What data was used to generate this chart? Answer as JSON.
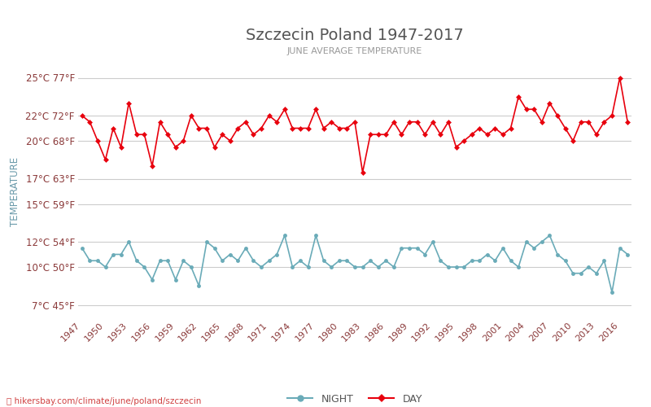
{
  "title": "Szczecin Poland 1947-2017",
  "subtitle": "JUNE AVERAGE TEMPERATURE",
  "ylabel": "TEMPERATURE",
  "footer": "hikersbay.com/climate/june/poland/szczecin",
  "years": [
    1947,
    1948,
    1949,
    1950,
    1951,
    1952,
    1953,
    1954,
    1955,
    1956,
    1957,
    1958,
    1959,
    1960,
    1961,
    1962,
    1963,
    1964,
    1965,
    1966,
    1967,
    1968,
    1969,
    1970,
    1971,
    1972,
    1973,
    1974,
    1975,
    1976,
    1977,
    1978,
    1979,
    1980,
    1981,
    1982,
    1983,
    1984,
    1985,
    1986,
    1987,
    1988,
    1989,
    1990,
    1991,
    1992,
    1993,
    1994,
    1995,
    1996,
    1997,
    1998,
    1999,
    2000,
    2001,
    2002,
    2003,
    2004,
    2005,
    2006,
    2007,
    2008,
    2009,
    2010,
    2011,
    2012,
    2013,
    2014,
    2015,
    2016,
    2017
  ],
  "day_temps": [
    22.0,
    21.5,
    20.0,
    18.5,
    21.0,
    19.5,
    23.0,
    20.5,
    20.5,
    18.0,
    21.5,
    20.5,
    19.5,
    20.0,
    22.0,
    21.0,
    21.0,
    19.5,
    20.5,
    20.0,
    21.0,
    21.5,
    20.5,
    21.0,
    22.0,
    21.5,
    22.5,
    21.0,
    21.0,
    21.0,
    22.5,
    21.0,
    21.5,
    21.0,
    21.0,
    21.5,
    17.5,
    20.5,
    20.5,
    20.5,
    21.5,
    20.5,
    21.5,
    21.5,
    20.5,
    21.5,
    20.5,
    21.5,
    19.5,
    20.0,
    20.5,
    21.0,
    20.5,
    21.0,
    20.5,
    21.0,
    23.5,
    22.5,
    22.5,
    21.5,
    23.0,
    22.0,
    21.0,
    20.0,
    21.5,
    21.5,
    20.5,
    21.5,
    22.0,
    25.0,
    21.5
  ],
  "night_temps": [
    11.5,
    10.5,
    10.5,
    10.0,
    11.0,
    11.0,
    12.0,
    10.5,
    10.0,
    9.0,
    10.5,
    10.5,
    9.0,
    10.5,
    10.0,
    8.5,
    12.0,
    11.5,
    10.5,
    11.0,
    10.5,
    11.5,
    10.5,
    10.0,
    10.5,
    11.0,
    12.5,
    10.0,
    10.5,
    10.0,
    12.5,
    10.5,
    10.0,
    10.5,
    10.5,
    10.0,
    10.0,
    10.5,
    10.0,
    10.5,
    10.0,
    11.5,
    11.5,
    11.5,
    11.0,
    12.0,
    10.5,
    10.0,
    10.0,
    10.0,
    10.5,
    10.5,
    11.0,
    10.5,
    11.5,
    10.5,
    10.0,
    12.0,
    11.5,
    12.0,
    12.5,
    11.0,
    10.5,
    9.5,
    9.5,
    10.0,
    9.5,
    10.5,
    8.0,
    11.5,
    11.0
  ],
  "yticks_c": [
    7,
    10,
    12,
    15,
    17,
    20,
    22,
    25
  ],
  "yticks_f": [
    45,
    50,
    54,
    59,
    63,
    68,
    72,
    77
  ],
  "xticks": [
    1947,
    1950,
    1953,
    1956,
    1959,
    1962,
    1965,
    1968,
    1971,
    1974,
    1977,
    1980,
    1983,
    1986,
    1989,
    1992,
    1995,
    1998,
    2001,
    2004,
    2007,
    2010,
    2013,
    2016
  ],
  "day_color": "#e8000d",
  "night_color": "#6aabb8",
  "bg_color": "#ffffff",
  "grid_color": "#cccccc",
  "title_color": "#555555",
  "subtitle_color": "#999999",
  "label_color": "#8b3a3a",
  "ylabel_color": "#6a9aaa",
  "xlim": [
    1946.5,
    2017.5
  ],
  "ylim_c": [
    6,
    26
  ],
  "footer_color": "#d04040",
  "footer_icon_color": "#e8a000"
}
